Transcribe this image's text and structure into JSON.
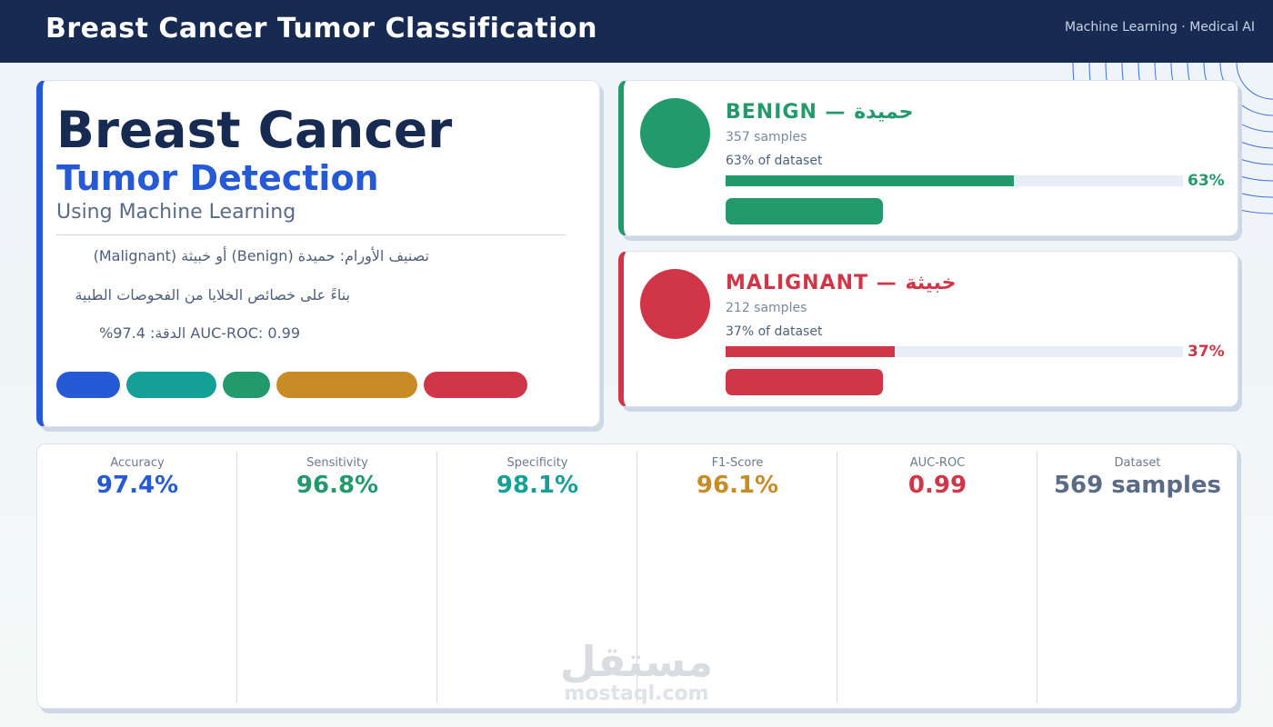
{
  "header": {
    "title": "Breast Cancer Tumor Classification",
    "subtitle": "Machine Learning · Medical AI",
    "background": "#172a52"
  },
  "hero": {
    "title_line1": "Breast Cancer",
    "title_line2": "Tumor Detection",
    "title_line3": "Using Machine Learning",
    "desc_line1": "تصنيف الأورام:  حميدة (Benign)  أو  خبيثة (Malignant)",
    "desc_line2": "بناءً على خصائص الخلايا من الفحوصات الطبية",
    "desc_line3": "AUC-ROC:  0.99      الدقة:  97.4%",
    "accent": "#2559d6",
    "pill_colors": [
      "#2559d6",
      "#14a097",
      "#229a6b",
      "#c98b26",
      "#d03647"
    ]
  },
  "classes": [
    {
      "name": "BENIGN  —  حميدة",
      "samples": "357 samples",
      "dataset_share": "63% of dataset",
      "percent_label": "63%",
      "share": 0.63,
      "color": "#229a6b"
    },
    {
      "name": "MALIGNANT  —  خبيثة",
      "samples": "212 samples",
      "dataset_share": "37% of dataset",
      "percent_label": "37%",
      "share": 0.37,
      "color": "#d03647"
    }
  ],
  "metrics": [
    {
      "label": "Accuracy",
      "value": "97.4%",
      "color": "#2559d6"
    },
    {
      "label": "Sensitivity",
      "value": "96.8%",
      "color": "#229a6b"
    },
    {
      "label": "Specificity",
      "value": "98.1%",
      "color": "#14a097"
    },
    {
      "label": "F1-Score",
      "value": "96.1%",
      "color": "#c98b26"
    },
    {
      "label": "AUC-ROC",
      "value": "0.99",
      "color": "#d03647"
    },
    {
      "label": "Dataset",
      "value": "569 samples",
      "color": "#5a6b87"
    }
  ],
  "watermark": {
    "arabic": "مستقل",
    "latin": "mostaql.com"
  }
}
